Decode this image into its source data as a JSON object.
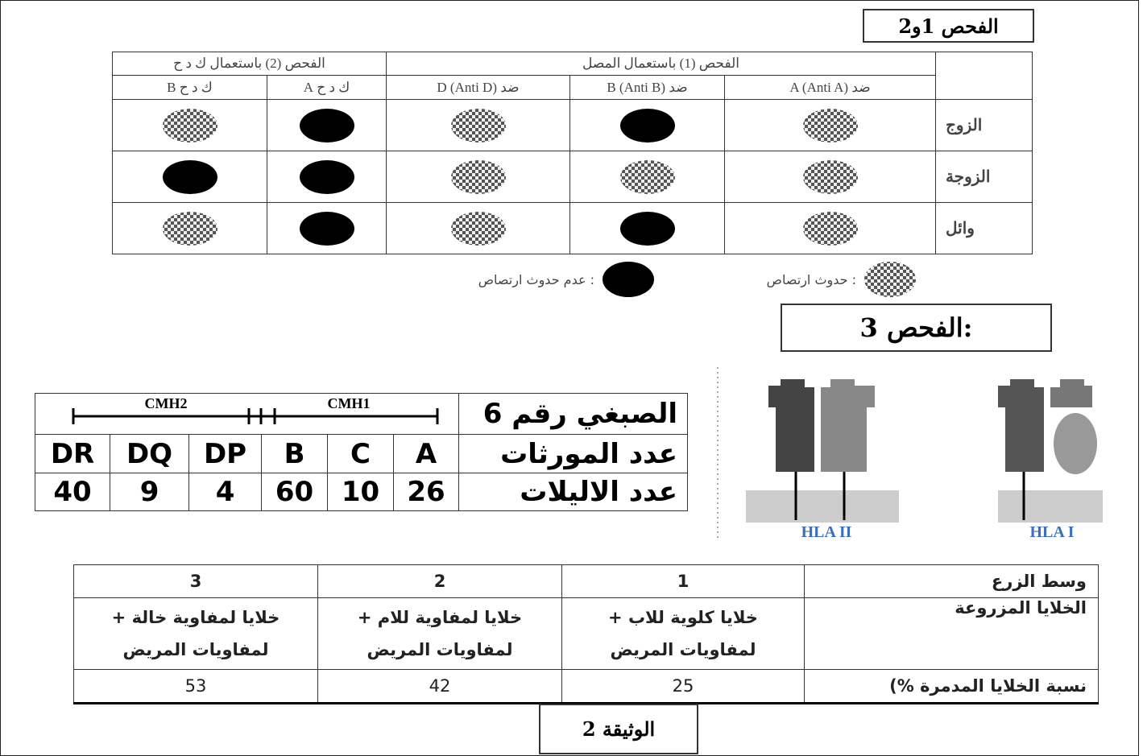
{
  "header": {
    "title": "الفحص 1و2"
  },
  "test12": {
    "group_headers": [
      "الفحص (1) باستعمال المصل",
      "الفحص (2) باستعمال ك د ح"
    ],
    "columns": [
      "ضد A (Anti A)",
      "ضد B (Anti B)",
      "ضد D (Anti D)",
      "ك د ح A",
      "ك د ح B"
    ],
    "rows": [
      {
        "label": "الزوج",
        "agglutination": [
          true,
          false,
          true,
          false,
          true
        ]
      },
      {
        "label": "الزوجة",
        "agglutination": [
          true,
          true,
          true,
          false,
          false
        ]
      },
      {
        "label": "وائل",
        "agglutination": [
          true,
          false,
          true,
          false,
          true
        ]
      }
    ]
  },
  "legend": [
    {
      "label": ": حدوث ارتصاص",
      "agglutination": true
    },
    {
      "label": ": عدم حدوث ارتصاص",
      "agglutination": false
    }
  ],
  "test3": {
    "title": "الفحص 3:",
    "chromosome": "الصبغي رقم 6",
    "regions": [
      "CMH1",
      "CMH2"
    ],
    "genes_label": "عدد المورثات",
    "genes": [
      "A",
      "C",
      "B",
      "DP",
      "DQ",
      "DR"
    ],
    "alleles_label": "عدد الاليلات",
    "alleles": [
      26,
      10,
      60,
      4,
      9,
      40
    ],
    "molecules": [
      "HLA I",
      "HLA II"
    ]
  },
  "culture": {
    "rows": [
      [
        "وسط الزرع",
        "1",
        "2",
        "3"
      ],
      [
        "الخلايا المزروعة",
        "خلايا كلوية للاب + لمفاويات المريض",
        "خلايا لمفاوية للام + لمفاويات المريض",
        "خلايا لمفاوية خالة + لمفاويات المريض"
      ],
      [
        "نسبة الخلايا المدمرة %)",
        25,
        42,
        53
      ]
    ]
  },
  "footer": {
    "title": "الوثيقة 2"
  }
}
